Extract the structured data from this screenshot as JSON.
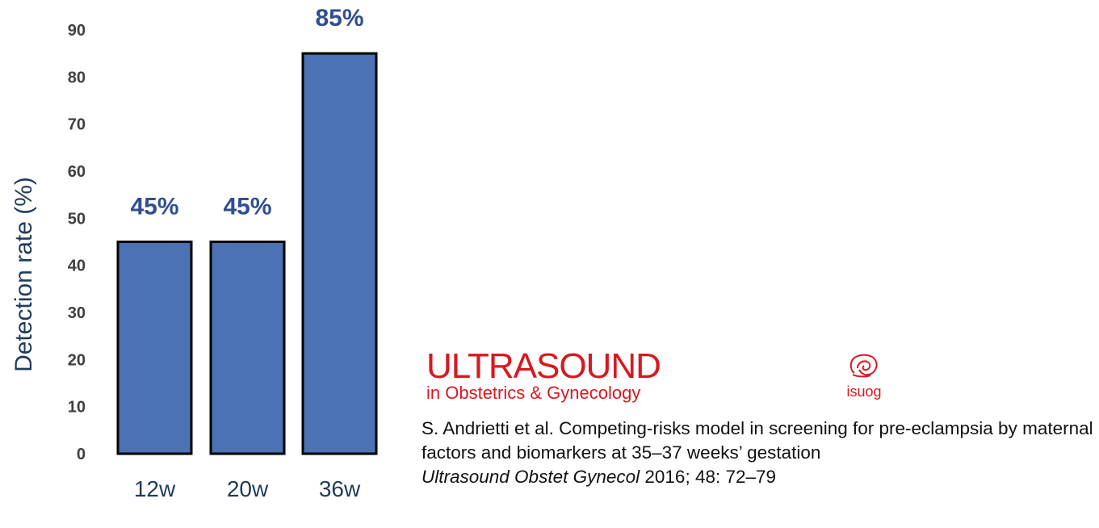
{
  "chart_data": {
    "type": "bar",
    "categories": [
      "12w",
      "20w",
      "36w"
    ],
    "values": [
      45,
      45,
      85
    ],
    "data_labels": [
      "45%",
      "45%",
      "85%"
    ],
    "title": "",
    "xlabel": "",
    "ylabel": "Detection rate (%)",
    "ylim": [
      0,
      90
    ],
    "yticks": [
      0,
      10,
      20,
      30,
      40,
      50,
      60,
      70,
      80,
      90
    ],
    "grid": false,
    "legend": "none",
    "bar_color": "#4a72b5",
    "bar_edge_color": "#000000"
  },
  "journal": {
    "title": "ULTRASOUND",
    "subtitle": "in Obstetrics & Gynecology",
    "society": "isuog",
    "color": "#d71920"
  },
  "citation": {
    "text": "S. Andrietti et al. Competing-risks model in screening for pre-eclampsia by maternal factors and biomarkers at 35–37 weeks’ gestation",
    "journal_ref": "Ultrasound Obstet Gynecol",
    "details": " 2016; 48: 72–79"
  }
}
